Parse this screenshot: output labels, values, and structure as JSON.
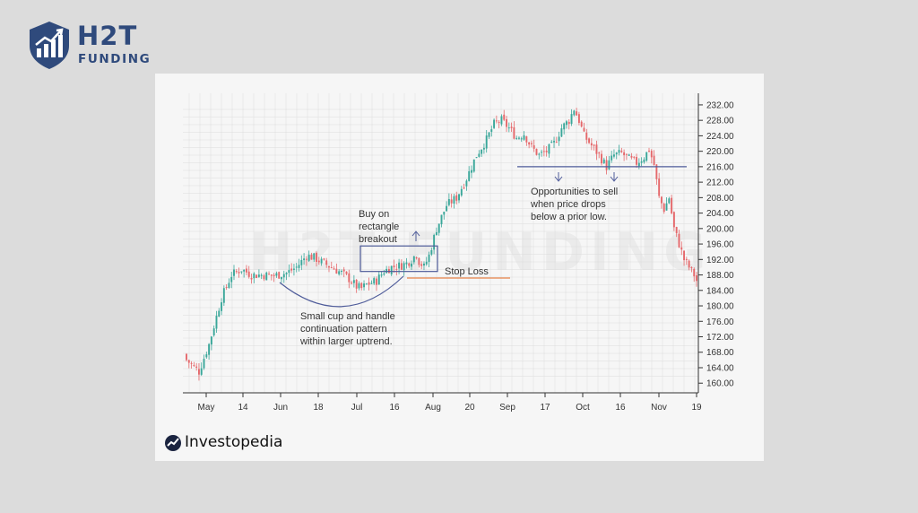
{
  "brand": {
    "name": "H2T",
    "subtitle": "FUNDING"
  },
  "watermark": "H2T FUNDING",
  "footer": {
    "logo_text": "Investopedia"
  },
  "colors": {
    "up": "#3aa79a",
    "down": "#e5686b",
    "axis": "#333333",
    "annotation": "#4f5c9a",
    "stop_loss": "#e8834a",
    "grid": "#dcdcdc"
  },
  "annotations": {
    "buy": "Buy on\nrectangle\nbreakout",
    "stop": "Stop Loss",
    "cup": "Small cup and handle\ncontinuation pattern\nwithin larger uptrend.",
    "sell": "Opportunities to sell\nwhen price drops\nbelow a prior low."
  },
  "chart_data": {
    "type": "candlestick",
    "y_ticks": [
      "232.00",
      "228.00",
      "224.00",
      "220.00",
      "216.00",
      "212.00",
      "208.00",
      "204.00",
      "200.00",
      "196.00",
      "192.00",
      "188.00",
      "184.00",
      "180.00",
      "176.00",
      "172.00",
      "168.00",
      "164.00",
      "160.00"
    ],
    "ylim": [
      157.5,
      235
    ],
    "x_ticks": [
      "May",
      "14",
      "Jun",
      "18",
      "Jul",
      "16",
      "Aug",
      "20",
      "Sep",
      "17",
      "Oct",
      "16",
      "Nov",
      "19"
    ],
    "stop_loss_level": 187.2,
    "support_level": 216.0,
    "rectangle_range": [
      188.9,
      195.5
    ],
    "close_path": [
      [
        0,
        166
      ],
      [
        5,
        163
      ],
      [
        9,
        170
      ],
      [
        14,
        182
      ],
      [
        18,
        188
      ],
      [
        22,
        189.5
      ],
      [
        26,
        188
      ],
      [
        30,
        188
      ],
      [
        35,
        187.8
      ],
      [
        40,
        188.5
      ],
      [
        44,
        190
      ],
      [
        48,
        193
      ],
      [
        51,
        192.5
      ],
      [
        55,
        191
      ],
      [
        58,
        190
      ],
      [
        62,
        188.5
      ],
      [
        65,
        187
      ],
      [
        68,
        185
      ],
      [
        70,
        184.5
      ],
      [
        72,
        185.5
      ],
      [
        76,
        186.5
      ],
      [
        79,
        189
      ],
      [
        82,
        190
      ],
      [
        86,
        190.5
      ],
      [
        88,
        191
      ],
      [
        90,
        192
      ],
      [
        92,
        193.5
      ],
      [
        93,
        191.5
      ],
      [
        95,
        190
      ],
      [
        97,
        193
      ],
      [
        100,
        200
      ],
      [
        104,
        206
      ],
      [
        108,
        208
      ],
      [
        112,
        213
      ],
      [
        116,
        219
      ],
      [
        120,
        223
      ],
      [
        123,
        227
      ],
      [
        126,
        228
      ],
      [
        129,
        226
      ],
      [
        132,
        223.5
      ],
      [
        135,
        224.5
      ],
      [
        138,
        221
      ],
      [
        141,
        219
      ],
      [
        144,
        220
      ],
      [
        147,
        222
      ],
      [
        150,
        226
      ],
      [
        153,
        228
      ],
      [
        155,
        231
      ],
      [
        157,
        228
      ],
      [
        159,
        224
      ],
      [
        162,
        221.5
      ],
      [
        165,
        219
      ],
      [
        168,
        216
      ],
      [
        171,
        219
      ],
      [
        174,
        219.5
      ],
      [
        177,
        218
      ],
      [
        180,
        217
      ],
      [
        183,
        218.5
      ],
      [
        185,
        220.5
      ],
      [
        187,
        216.5
      ],
      [
        189,
        208
      ],
      [
        191,
        205
      ],
      [
        193,
        208
      ],
      [
        195,
        200
      ],
      [
        197,
        196
      ],
      [
        199,
        192
      ],
      [
        201,
        190
      ],
      [
        203,
        188
      ],
      [
        204,
        186.5
      ]
    ]
  }
}
